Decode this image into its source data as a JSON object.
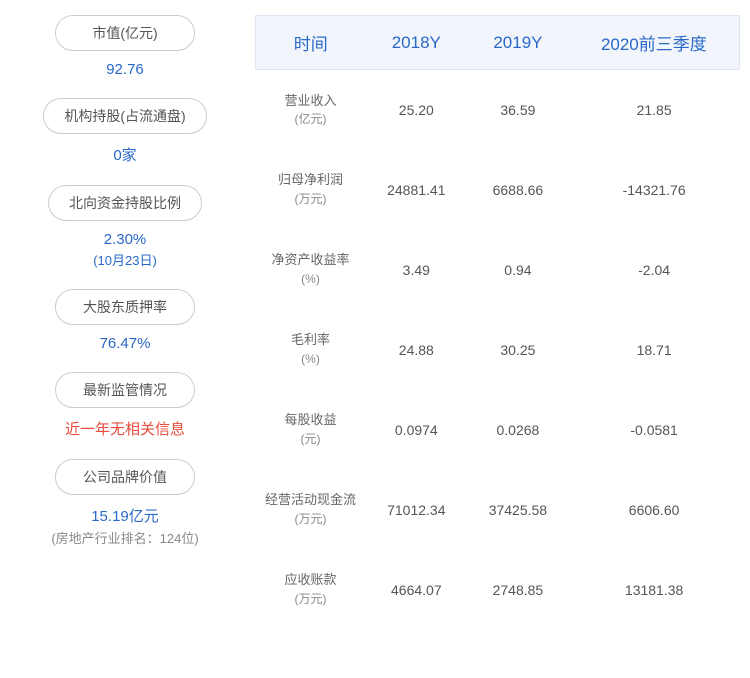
{
  "leftPanel": {
    "items": [
      {
        "label": "市值(亿元)",
        "value": "92.76",
        "valueColor": "#2968c8"
      },
      {
        "label": "机构持股(占流通盘)",
        "value": "0家",
        "valueColor": "#2968c8"
      },
      {
        "label": "北向资金持股比例",
        "value": "2.30%",
        "sub": "(10月23日)",
        "valueColor": "#2968c8"
      },
      {
        "label": "大股东质押率",
        "value": "76.47%",
        "valueColor": "#2968c8"
      },
      {
        "label": "最新监管情况",
        "value": "近一年无相关信息",
        "valueColor": "#e74c3c"
      },
      {
        "label": "公司品牌价值",
        "value": "15.19亿元",
        "sub": "(房地产行业排名：124位)",
        "valueColor": "#2968c8",
        "subColor": "#888888"
      }
    ]
  },
  "table": {
    "headers": [
      "时间",
      "2018Y",
      "2019Y",
      "2020前三季度"
    ],
    "rows": [
      {
        "label": "营业收入",
        "unit": "(亿元)",
        "values": [
          "25.20",
          "36.59",
          "21.85"
        ]
      },
      {
        "label": "归母净利润",
        "unit": "(万元)",
        "values": [
          "24881.41",
          "6688.66",
          "-14321.76"
        ]
      },
      {
        "label": "净资产收益率",
        "unit": "(%)",
        "values": [
          "3.49",
          "0.94",
          "-2.04"
        ]
      },
      {
        "label": "毛利率",
        "unit": "(%)",
        "values": [
          "24.88",
          "30.25",
          "18.71"
        ]
      },
      {
        "label": "每股收益",
        "unit": "(元)",
        "values": [
          "0.0974",
          "0.0268",
          "-0.0581"
        ]
      },
      {
        "label": "经营活动现金流",
        "unit": "(万元)",
        "values": [
          "71012.34",
          "37425.58",
          "6606.60"
        ]
      },
      {
        "label": "应收账款",
        "unit": "(万元)",
        "values": [
          "4664.07",
          "2748.85",
          "13181.38"
        ]
      }
    ]
  },
  "colors": {
    "headerBlue": "#2968c8",
    "headerBg": "#f2f6fc",
    "red": "#e74c3c",
    "textGray": "#555555",
    "borderGray": "#cccccc"
  }
}
